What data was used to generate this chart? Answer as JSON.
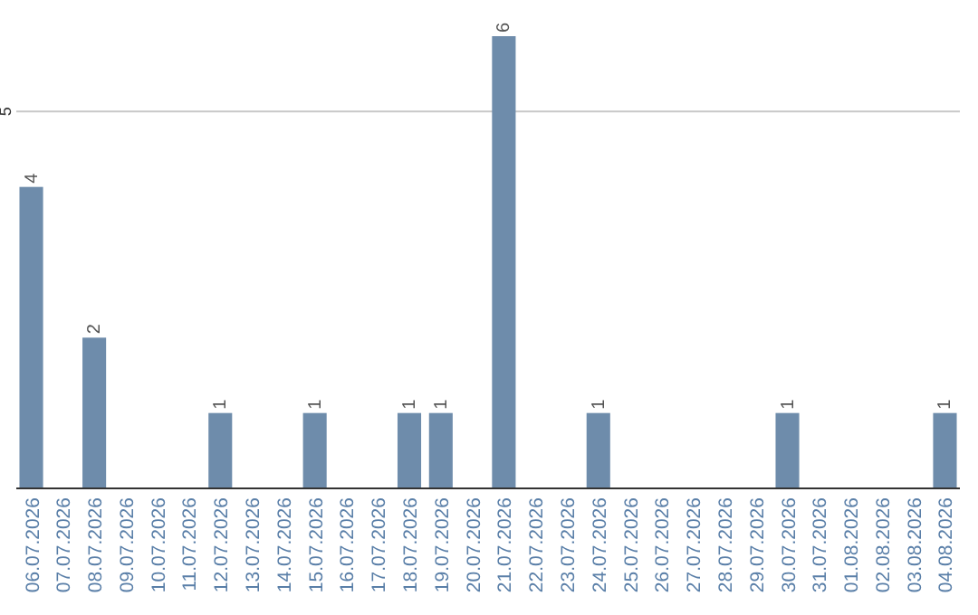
{
  "chart_data": {
    "type": "bar",
    "categories": [
      "06.07.2026",
      "07.07.2026",
      "08.07.2026",
      "09.07.2026",
      "10.07.2026",
      "11.07.2026",
      "12.07.2026",
      "13.07.2026",
      "14.07.2026",
      "15.07.2026",
      "16.07.2026",
      "17.07.2026",
      "18.07.2026",
      "19.07.2026",
      "20.07.2026",
      "21.07.2026",
      "22.07.2026",
      "23.07.2026",
      "24.07.2026",
      "25.07.2026",
      "26.07.2026",
      "27.07.2026",
      "28.07.2026",
      "29.07.2026",
      "30.07.2026",
      "31.07.2026",
      "01.08.2026",
      "02.08.2026",
      "03.08.2026",
      "04.08.2026"
    ],
    "values": [
      4,
      0,
      2,
      0,
      0,
      0,
      1,
      0,
      0,
      1,
      0,
      0,
      1,
      1,
      0,
      6,
      0,
      0,
      1,
      0,
      0,
      0,
      0,
      0,
      1,
      0,
      0,
      0,
      0,
      1
    ],
    "value_labels": [
      "4",
      null,
      "2",
      null,
      null,
      null,
      "1",
      null,
      null,
      "1",
      null,
      null,
      "1",
      "1",
      null,
      "6",
      null,
      null,
      "1",
      null,
      null,
      null,
      null,
      null,
      "1",
      null,
      null,
      null,
      null,
      "1"
    ],
    "color": "#6e8cab",
    "ylim": [
      0,
      6
    ],
    "yticks": [
      5
    ],
    "grid": "y"
  }
}
